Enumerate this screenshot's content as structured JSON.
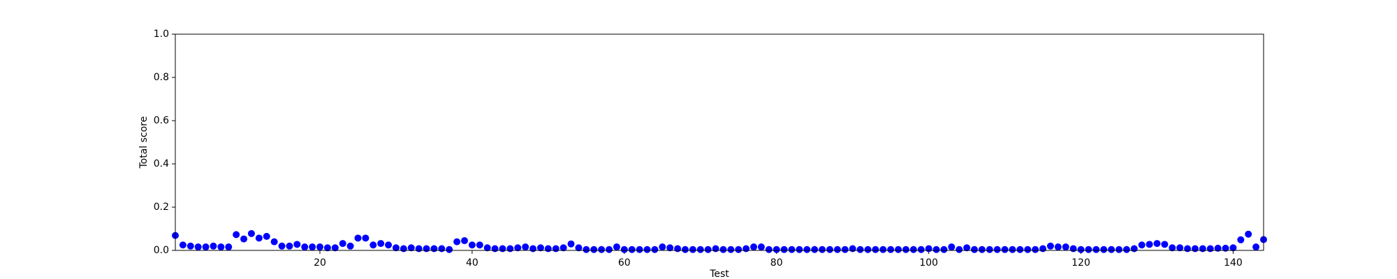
{
  "chart_data": {
    "type": "scatter",
    "xlabel": "Test",
    "ylabel": "Total score",
    "color": "#0000ff",
    "x": [
      1,
      2,
      3,
      4,
      5,
      6,
      7,
      8,
      9,
      10,
      11,
      12,
      13,
      14,
      15,
      16,
      17,
      18,
      19,
      20,
      21,
      22,
      23,
      24,
      25,
      26,
      27,
      28,
      29,
      30,
      31,
      32,
      33,
      34,
      35,
      36,
      37,
      38,
      39,
      40,
      41,
      42,
      43,
      44,
      45,
      46,
      47,
      48,
      49,
      50,
      51,
      52,
      53,
      54,
      55,
      56,
      57,
      58,
      59,
      60,
      61,
      62,
      63,
      64,
      65,
      66,
      67,
      68,
      69,
      70,
      71,
      72,
      73,
      74,
      75,
      76,
      77,
      78,
      79,
      80,
      81,
      82,
      83,
      84,
      85,
      86,
      87,
      88,
      89,
      90,
      91,
      92,
      93,
      94,
      95,
      96,
      97,
      98,
      99,
      100,
      101,
      102,
      103,
      104,
      105,
      106,
      107,
      108,
      109,
      110,
      111,
      112,
      113,
      114,
      115,
      116,
      117,
      118,
      119,
      120,
      121,
      122,
      123,
      124,
      125,
      126,
      127,
      128,
      129,
      130,
      131,
      132,
      133,
      134,
      135,
      136,
      137,
      138,
      139,
      140,
      141,
      142,
      143,
      144
    ],
    "values": [
      0.069,
      0.025,
      0.02,
      0.016,
      0.016,
      0.02,
      0.016,
      0.016,
      0.073,
      0.053,
      0.078,
      0.057,
      0.065,
      0.04,
      0.02,
      0.02,
      0.028,
      0.016,
      0.016,
      0.016,
      0.012,
      0.012,
      0.032,
      0.02,
      0.057,
      0.057,
      0.025,
      0.032,
      0.025,
      0.012,
      0.008,
      0.012,
      0.008,
      0.008,
      0.008,
      0.008,
      0.004,
      0.04,
      0.045,
      0.025,
      0.025,
      0.012,
      0.008,
      0.008,
      0.008,
      0.012,
      0.016,
      0.008,
      0.012,
      0.008,
      0.008,
      0.012,
      0.03,
      0.012,
      0.004,
      0.004,
      0.004,
      0.004,
      0.016,
      0.004,
      0.004,
      0.004,
      0.004,
      0.004,
      0.016,
      0.012,
      0.008,
      0.004,
      0.004,
      0.004,
      0.004,
      0.008,
      0.004,
      0.004,
      0.004,
      0.008,
      0.016,
      0.016,
      0.004,
      0.004,
      0.004,
      0.004,
      0.004,
      0.004,
      0.004,
      0.004,
      0.004,
      0.004,
      0.004,
      0.008,
      0.004,
      0.004,
      0.004,
      0.004,
      0.004,
      0.004,
      0.004,
      0.004,
      0.004,
      0.008,
      0.004,
      0.004,
      0.016,
      0.004,
      0.012,
      0.004,
      0.004,
      0.004,
      0.004,
      0.004,
      0.004,
      0.004,
      0.004,
      0.004,
      0.008,
      0.02,
      0.016,
      0.016,
      0.008,
      0.004,
      0.004,
      0.004,
      0.004,
      0.004,
      0.004,
      0.004,
      0.008,
      0.025,
      0.028,
      0.032,
      0.028,
      0.012,
      0.012,
      0.008,
      0.008,
      0.008,
      0.008,
      0.01,
      0.01,
      0.012,
      0.049,
      0.075,
      0.016,
      0.05
    ],
    "xlim": [
      1,
      144
    ],
    "xticks": [
      20,
      40,
      60,
      80,
      100,
      120,
      140
    ],
    "ylim": [
      0,
      1
    ],
    "yticks": [
      {
        "value": 0,
        "label": "0.0"
      },
      0.2,
      0.4,
      0.6,
      0.8,
      {
        "value": 1,
        "label": "1.0"
      }
    ],
    "grid": false
  }
}
